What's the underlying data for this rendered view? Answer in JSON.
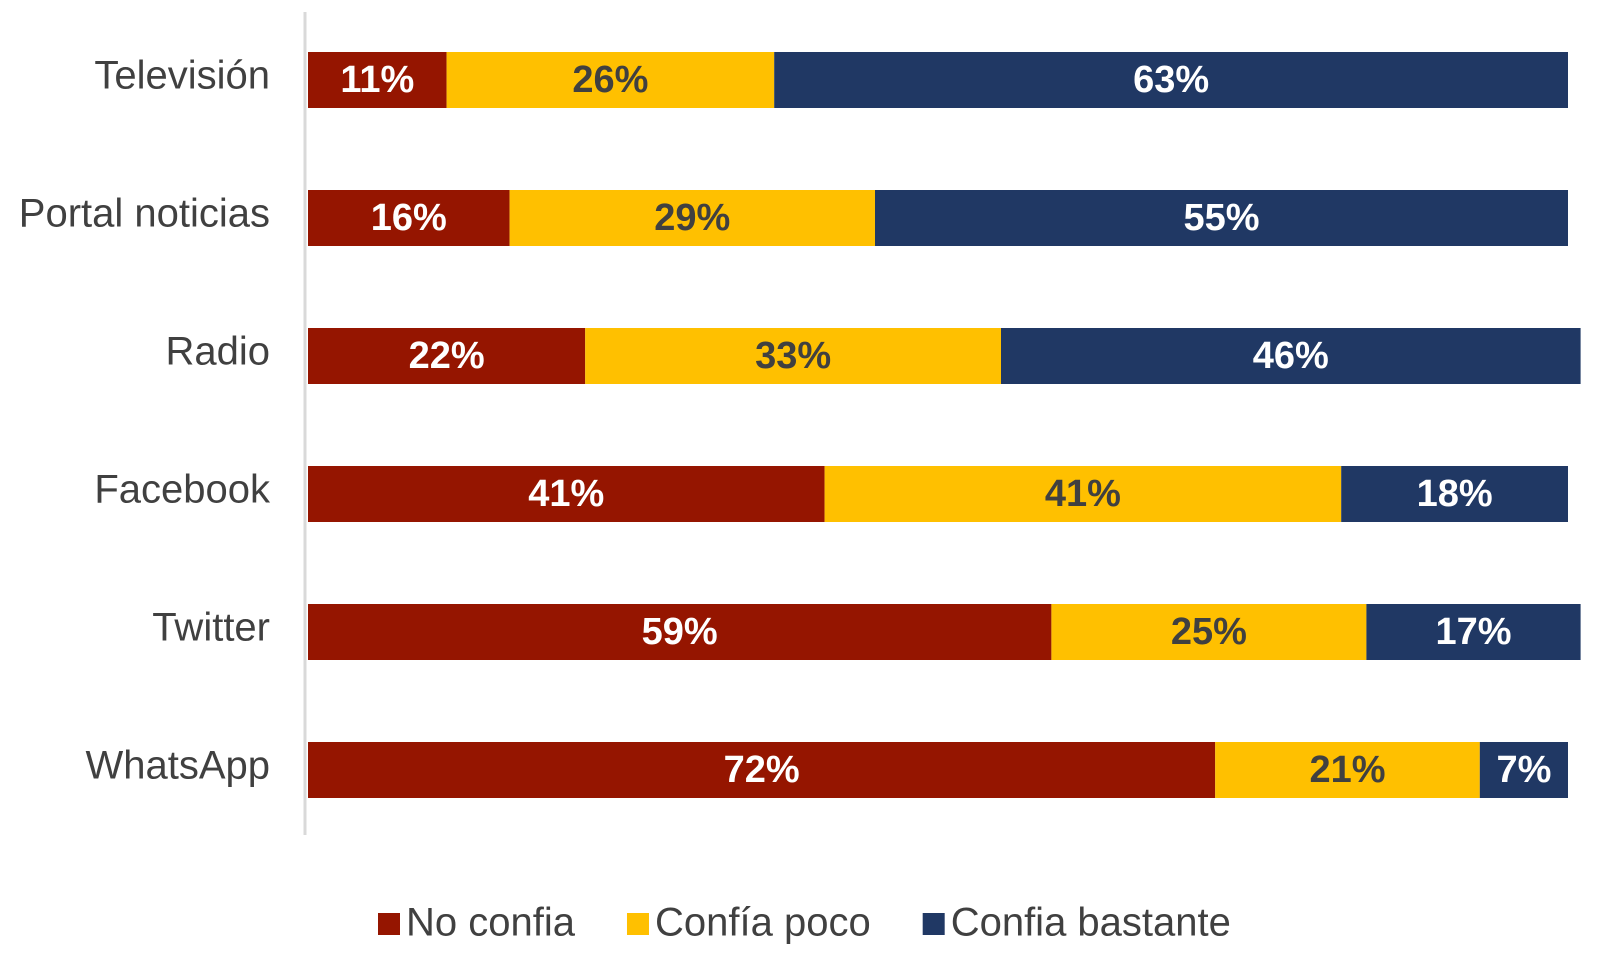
{
  "chart_data": {
    "type": "stacked-bar-horizontal",
    "categories": [
      "Televisión",
      "Portal noticias",
      "Radio",
      "Facebook",
      "Twitter",
      "WhatsApp"
    ],
    "series": [
      {
        "name": "No confia",
        "color": "#951500",
        "label_color": "#ffffff",
        "values": [
          11,
          16,
          22,
          41,
          59,
          72
        ],
        "value_labels": [
          "11%",
          "16%",
          "22%",
          "41%",
          "59%",
          "72%"
        ]
      },
      {
        "name": "Confía poco",
        "color": "#ffc000",
        "label_color": "#404040",
        "values": [
          26,
          29,
          33,
          41,
          25,
          21
        ],
        "value_labels": [
          "26%",
          "29%",
          "33%",
          "41%",
          "25%",
          "21%"
        ]
      },
      {
        "name": "Confia bastante",
        "color": "#203864",
        "label_color": "#ffffff",
        "values": [
          63,
          55,
          46,
          18,
          17,
          7
        ],
        "value_labels": [
          "63%",
          "55%",
          "46%",
          "18%",
          "17%",
          "7%"
        ]
      }
    ],
    "xlim": [
      0,
      100
    ],
    "legend": "bottom"
  }
}
